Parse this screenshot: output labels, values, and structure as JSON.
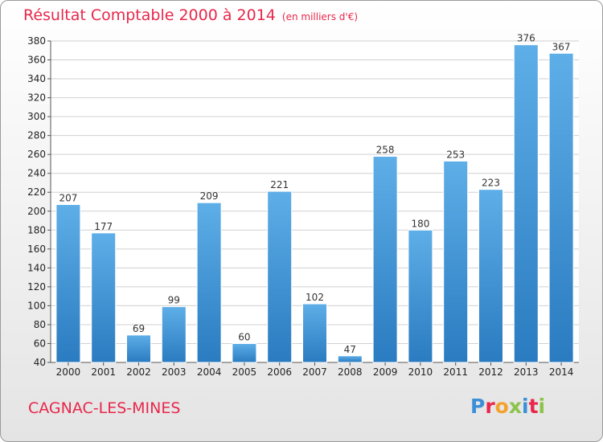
{
  "title": "Résultat Comptable 2000 à 2014",
  "subtitle": "(en milliers d'€)",
  "city": "CAGNAC-LES-MINES",
  "logo": {
    "letters": [
      "P",
      "r",
      "o",
      "x",
      "i",
      "t",
      "i"
    ],
    "colors": [
      "#3a8fd8",
      "#e8274b",
      "#f4a22c",
      "#8bc34a",
      "#3a8fd8",
      "#e8274b",
      "#8bc34a"
    ]
  },
  "colors": {
    "accent": "#e8274b",
    "bar_top": "#5eaee8",
    "bar_bottom": "#2a7bc0",
    "grid": "#d0d0d0"
  },
  "chart_data": {
    "type": "bar",
    "title": "Résultat Comptable 2000 à 2014",
    "subtitle": "(en milliers d'€)",
    "categories": [
      "2000",
      "2001",
      "2002",
      "2003",
      "2004",
      "2005",
      "2006",
      "2007",
      "2008",
      "2009",
      "2010",
      "2011",
      "2012",
      "2013",
      "2014"
    ],
    "values": [
      207,
      177,
      69,
      99,
      209,
      60,
      221,
      102,
      47,
      258,
      180,
      253,
      223,
      376,
      367
    ],
    "ylim": [
      40,
      380
    ],
    "yticks": [
      40,
      60,
      80,
      100,
      120,
      140,
      160,
      180,
      200,
      220,
      240,
      260,
      280,
      300,
      320,
      340,
      360,
      380
    ],
    "grid": true,
    "xlabel": "",
    "ylabel": ""
  }
}
